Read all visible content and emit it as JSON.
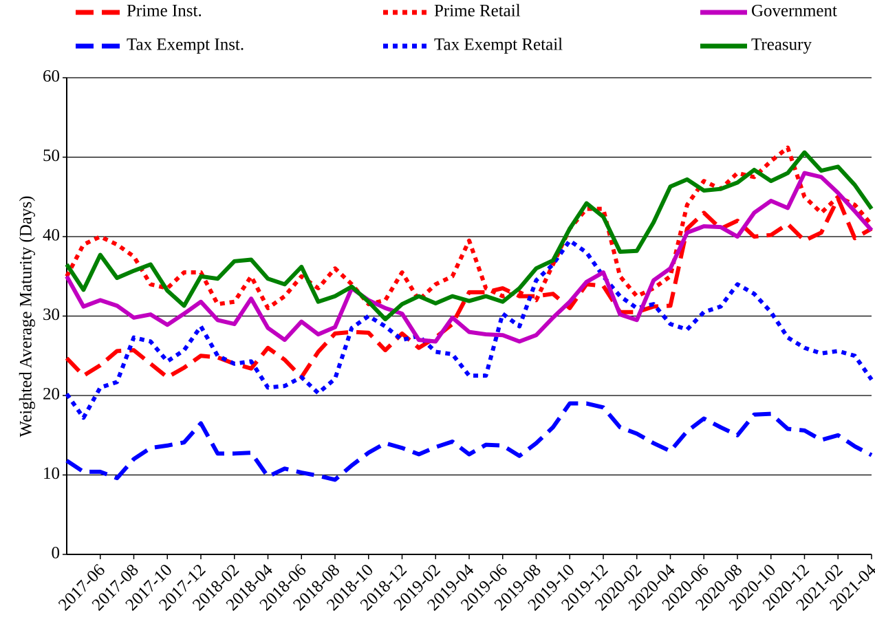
{
  "chart_data": {
    "type": "line",
    "y_label": "Weighted Average Maturity (Days)",
    "categories": [
      null,
      null,
      "2017-06",
      null,
      "2017-08",
      null,
      "2017-10",
      null,
      "2017-12",
      null,
      "2018-02",
      null,
      "2018-04",
      null,
      "2018-06",
      null,
      "2018-08",
      null,
      "2018-10",
      null,
      "2018-12",
      null,
      "2019-02",
      null,
      "2019-04",
      null,
      "2019-06",
      null,
      "2019-08",
      null,
      "2019-10",
      null,
      "2019-12",
      null,
      "2020-02",
      null,
      "2020-04",
      null,
      "2020-06",
      null,
      "2020-08",
      null,
      "2020-10",
      null,
      "2020-12",
      null,
      "2021-02",
      null,
      "2021-04"
    ],
    "ylim": [
      0,
      60
    ],
    "yticks": [
      0,
      10,
      20,
      30,
      40,
      50,
      60
    ],
    "grid": true,
    "series": [
      {
        "name": "Prime Inst.",
        "color": "#ff0000",
        "dash": "dashed",
        "values": [
          24.7,
          22.5,
          23.8,
          25.6,
          25.7,
          24,
          22.3,
          23.5,
          25,
          24.8,
          24,
          23.4,
          26,
          24.5,
          22.3,
          25.5,
          27.8,
          28,
          27.9,
          25.7,
          27.8,
          26,
          27.3,
          29,
          33,
          33,
          33.5,
          32.5,
          32.5,
          32.8,
          31,
          34,
          33.8,
          30.5,
          30.5,
          31.2,
          31.3,
          41,
          43,
          41,
          42,
          40,
          40.2,
          41.6,
          39.5,
          40.5,
          44.8,
          39.8,
          41
        ]
      },
      {
        "name": "Tax Exempt Inst.",
        "color": "#0000ff",
        "dash": "dashed",
        "values": [
          11.8,
          10.4,
          10.4,
          9.6,
          12,
          13.4,
          13.7,
          14.1,
          16.5,
          12.7,
          12.7,
          12.8,
          9.8,
          10.8,
          10.3,
          9.9,
          9.4,
          11.2,
          12.8,
          14,
          13.4,
          12.6,
          13.5,
          14.2,
          12.6,
          13.8,
          13.7,
          12.4,
          14,
          16,
          19,
          19,
          18.5,
          16,
          15.2,
          14,
          13,
          15.5,
          17.1,
          16,
          15,
          17.6,
          17.7,
          15.8,
          15.6,
          14.4,
          15,
          13.6,
          12.5
        ]
      },
      {
        "name": "Prime Retail",
        "color": "#ff0000",
        "dash": "dotted",
        "values": [
          35,
          39,
          40,
          39,
          37.5,
          34,
          33.5,
          35.5,
          35.5,
          31.5,
          31.8,
          35,
          31,
          32.5,
          35,
          33.5,
          36,
          34,
          31.5,
          32,
          35.5,
          32,
          34,
          35,
          39.5,
          33.5,
          32.5,
          33,
          32,
          36.5,
          41,
          43.5,
          43.5,
          35,
          32.5,
          33.5,
          35,
          44,
          47,
          46,
          48,
          47.5,
          49.5,
          51.2,
          45,
          43,
          45,
          44,
          41.5
        ]
      },
      {
        "name": "Tax Exempt Retail",
        "color": "#0000ff",
        "dash": "dotted",
        "values": [
          20.2,
          17.2,
          21,
          21.7,
          27.3,
          26.8,
          24.3,
          25.7,
          28.7,
          25,
          24,
          24.3,
          21,
          21.2,
          22.3,
          20.3,
          22.1,
          28.5,
          30,
          28.7,
          27,
          27.5,
          25.5,
          25.2,
          22.5,
          22.5,
          30.3,
          28.7,
          34.5,
          36.5,
          39.5,
          38,
          35,
          32.5,
          31,
          31.5,
          29,
          28.3,
          30.5,
          31.2,
          34,
          32.8,
          30.5,
          27.3,
          26,
          25.3,
          25.6,
          25,
          22
        ]
      },
      {
        "name": "Government",
        "color": "#c000c0",
        "dash": "solid",
        "values": [
          35,
          31.2,
          32,
          31.3,
          29.8,
          30.2,
          28.9,
          30.3,
          31.8,
          29.5,
          29,
          32.2,
          28.5,
          27,
          29.3,
          27.7,
          28.6,
          33.5,
          32,
          31,
          30.3,
          27,
          26.8,
          29.8,
          28,
          27.7,
          27.6,
          26.8,
          27.6,
          29.8,
          31.8,
          34.3,
          35.5,
          30.2,
          29.5,
          34.5,
          36,
          40.5,
          41.3,
          41.2,
          40,
          43,
          44.5,
          43.6,
          48,
          47.5,
          45.5,
          43.2,
          40.8
        ]
      },
      {
        "name": "Treasury",
        "color": "#008000",
        "dash": "solid",
        "values": [
          36.5,
          33.3,
          37.7,
          34.8,
          35.7,
          36.5,
          33.2,
          31.3,
          35,
          34.7,
          36.9,
          37.1,
          34.7,
          34,
          36.2,
          31.8,
          32.5,
          33.7,
          31.8,
          29.6,
          31.5,
          32.5,
          31.6,
          32.5,
          31.9,
          32.5,
          31.8,
          33.5,
          36,
          37,
          41,
          44.2,
          42.5,
          38.1,
          38.2,
          41.8,
          46.3,
          47.2,
          45.8,
          46,
          46.8,
          48.4,
          47,
          48,
          50.6,
          48.3,
          48.8,
          46.5,
          43.5
        ]
      }
    ]
  }
}
